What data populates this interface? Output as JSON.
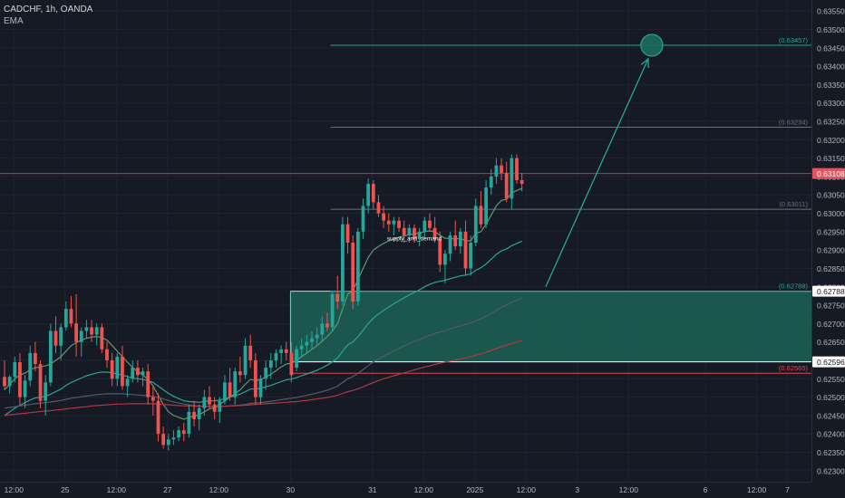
{
  "legend": {
    "symbol_line": "CADCHF, 1h, OANDA",
    "indicator": "EMA"
  },
  "chart_data": {
    "type": "candlestick",
    "symbol": "CADCHF",
    "interval": "1h",
    "source": "OANDA",
    "ylim": [
      0.6227,
      0.6358
    ],
    "y_ticks": [
      "0.63550",
      "0.63500",
      "0.63450",
      "0.63400",
      "0.63350",
      "0.63300",
      "0.63250",
      "0.63200",
      "0.63150",
      "0.63100",
      "0.63050",
      "0.63000",
      "0.62950",
      "0.62900",
      "0.62850",
      "0.62800",
      "0.62750",
      "0.62700",
      "0.62650",
      "0.62600",
      "0.62550",
      "0.62500",
      "0.62450",
      "0.62400",
      "0.62350",
      "0.62300"
    ],
    "x_ticks": [
      {
        "label": "12:00",
        "bar": 2
      },
      {
        "label": "25",
        "bar": 12
      },
      {
        "label": "12:00",
        "bar": 22
      },
      {
        "label": "27",
        "bar": 32
      },
      {
        "label": "12:00",
        "bar": 42
      },
      {
        "label": "30",
        "bar": 56
      },
      {
        "label": "31",
        "bar": 72
      },
      {
        "label": "12:00",
        "bar": 82
      },
      {
        "label": "2025",
        "bar": 92
      },
      {
        "label": "12:00",
        "bar": 102
      },
      {
        "label": "3",
        "bar": 112
      },
      {
        "label": "12:00",
        "bar": 122
      },
      {
        "label": "6",
        "bar": 137
      },
      {
        "label": "12:00",
        "bar": 147
      },
      {
        "label": "7",
        "bar": 153
      }
    ],
    "candles": [
      [
        0.62555,
        0.626,
        0.6252,
        0.6253
      ],
      [
        0.6253,
        0.6256,
        0.6251,
        0.62555
      ],
      [
        0.62555,
        0.6261,
        0.6254,
        0.62595
      ],
      [
        0.62595,
        0.6262,
        0.6248,
        0.625
      ],
      [
        0.625,
        0.6256,
        0.6247,
        0.62545
      ],
      [
        0.62545,
        0.6264,
        0.6253,
        0.6262
      ],
      [
        0.6262,
        0.6265,
        0.6257,
        0.6259
      ],
      [
        0.6259,
        0.626,
        0.6247,
        0.6249
      ],
      [
        0.6249,
        0.6256,
        0.6245,
        0.6254
      ],
      [
        0.6254,
        0.627,
        0.6253,
        0.6268
      ],
      [
        0.6268,
        0.6272,
        0.6262,
        0.6264
      ],
      [
        0.6264,
        0.627,
        0.626,
        0.6269
      ],
      [
        0.6269,
        0.6276,
        0.6268,
        0.6274
      ],
      [
        0.6274,
        0.62775,
        0.6269,
        0.627
      ],
      [
        0.627,
        0.6278,
        0.6261,
        0.6265
      ],
      [
        0.6265,
        0.6269,
        0.6261,
        0.6268
      ],
      [
        0.6268,
        0.6271,
        0.6266,
        0.6269
      ],
      [
        0.6269,
        0.6271,
        0.6265,
        0.6267
      ],
      [
        0.6267,
        0.627,
        0.6264,
        0.6269
      ],
      [
        0.6269,
        0.627,
        0.6262,
        0.6263
      ],
      [
        0.6263,
        0.6265,
        0.6258,
        0.626
      ],
      [
        0.626,
        0.6262,
        0.6253,
        0.6255
      ],
      [
        0.6255,
        0.6262,
        0.6253,
        0.6261
      ],
      [
        0.6261,
        0.6264,
        0.6252,
        0.6253
      ],
      [
        0.6253,
        0.6256,
        0.625,
        0.6255
      ],
      [
        0.6255,
        0.626,
        0.6254,
        0.6258
      ],
      [
        0.6258,
        0.626,
        0.6254,
        0.6256
      ],
      [
        0.6256,
        0.6258,
        0.6253,
        0.6257
      ],
      [
        0.6257,
        0.6259,
        0.6248,
        0.625
      ],
      [
        0.625,
        0.6253,
        0.6245,
        0.6249
      ],
      [
        0.6249,
        0.6251,
        0.6238,
        0.624
      ],
      [
        0.624,
        0.6242,
        0.6236,
        0.6237
      ],
      [
        0.6237,
        0.624,
        0.62355,
        0.62385
      ],
      [
        0.62385,
        0.6241,
        0.6237,
        0.6239
      ],
      [
        0.6239,
        0.6242,
        0.6238,
        0.6241
      ],
      [
        0.6241,
        0.6243,
        0.6238,
        0.624
      ],
      [
        0.624,
        0.6248,
        0.6239,
        0.6246
      ],
      [
        0.6246,
        0.6249,
        0.6242,
        0.6244
      ],
      [
        0.6244,
        0.6248,
        0.6241,
        0.6247
      ],
      [
        0.6247,
        0.6252,
        0.6245,
        0.625
      ],
      [
        0.625,
        0.6253,
        0.6247,
        0.6248
      ],
      [
        0.6248,
        0.625,
        0.6244,
        0.6246
      ],
      [
        0.6246,
        0.625,
        0.6243,
        0.6249
      ],
      [
        0.6249,
        0.6256,
        0.6248,
        0.6254
      ],
      [
        0.6254,
        0.6258,
        0.6249,
        0.625
      ],
      [
        0.625,
        0.6258,
        0.6248,
        0.6257
      ],
      [
        0.6257,
        0.6261,
        0.6254,
        0.6256
      ],
      [
        0.6256,
        0.6266,
        0.6255,
        0.6264
      ],
      [
        0.6264,
        0.6267,
        0.6258,
        0.626
      ],
      [
        0.626,
        0.6262,
        0.6248,
        0.625
      ],
      [
        0.625,
        0.6256,
        0.6248,
        0.6255
      ],
      [
        0.6255,
        0.626,
        0.6252,
        0.6258
      ],
      [
        0.6258,
        0.6262,
        0.6255,
        0.626
      ],
      [
        0.626,
        0.6263,
        0.6258,
        0.6262
      ],
      [
        0.6262,
        0.6264,
        0.6259,
        0.6263
      ],
      [
        0.6263,
        0.6265,
        0.626,
        0.6262
      ],
      [
        0.6262,
        0.6265,
        0.6254,
        0.6256
      ],
      [
        0.6258,
        0.6264,
        0.6257,
        0.6263
      ],
      [
        0.6263,
        0.6266,
        0.6261,
        0.6264
      ],
      [
        0.6264,
        0.6267,
        0.6262,
        0.6265
      ],
      [
        0.6265,
        0.6268,
        0.6263,
        0.6266
      ],
      [
        0.6266,
        0.6269,
        0.6264,
        0.6267
      ],
      [
        0.6267,
        0.6272,
        0.6265,
        0.627
      ],
      [
        0.627,
        0.6273,
        0.6268,
        0.6269
      ],
      [
        0.6269,
        0.6279,
        0.6268,
        0.6278
      ],
      [
        0.6278,
        0.6283,
        0.6274,
        0.6276
      ],
      [
        0.6276,
        0.6299,
        0.6275,
        0.6297
      ],
      [
        0.6297,
        0.6299,
        0.6289,
        0.6292
      ],
      [
        0.6292,
        0.6294,
        0.6274,
        0.6276
      ],
      [
        0.6276,
        0.6296,
        0.6275,
        0.6295
      ],
      [
        0.6295,
        0.6304,
        0.6293,
        0.6302
      ],
      [
        0.6302,
        0.63095,
        0.63,
        0.6308
      ],
      [
        0.6308,
        0.6309,
        0.6301,
        0.6303
      ],
      [
        0.6303,
        0.6305,
        0.6299,
        0.63
      ],
      [
        0.63,
        0.6302,
        0.6296,
        0.6298
      ],
      [
        0.6298,
        0.63,
        0.6295,
        0.6297
      ],
      [
        0.6297,
        0.6299,
        0.6294,
        0.6298
      ],
      [
        0.6298,
        0.6299,
        0.6295,
        0.6296
      ],
      [
        0.6296,
        0.6298,
        0.6292,
        0.6294
      ],
      [
        0.6294,
        0.6297,
        0.6292,
        0.6296
      ],
      [
        0.6296,
        0.6297,
        0.6292,
        0.6293
      ],
      [
        0.6293,
        0.6296,
        0.6291,
        0.6295
      ],
      [
        0.6295,
        0.6299,
        0.6293,
        0.6298
      ],
      [
        0.6298,
        0.63,
        0.6295,
        0.6296
      ],
      [
        0.6296,
        0.6299,
        0.6292,
        0.6293
      ],
      [
        0.6293,
        0.6295,
        0.6284,
        0.6286
      ],
      [
        0.6286,
        0.629,
        0.6281,
        0.6289
      ],
      [
        0.6289,
        0.6295,
        0.6287,
        0.6294
      ],
      [
        0.6294,
        0.6298,
        0.629,
        0.6291
      ],
      [
        0.6291,
        0.6296,
        0.6289,
        0.6295
      ],
      [
        0.6295,
        0.6298,
        0.6283,
        0.6285
      ],
      [
        0.6285,
        0.6294,
        0.6283,
        0.6292
      ],
      [
        0.6292,
        0.6304,
        0.6291,
        0.6302
      ],
      [
        0.6302,
        0.6306,
        0.6296,
        0.6297
      ],
      [
        0.6297,
        0.6309,
        0.6296,
        0.6307
      ],
      [
        0.6307,
        0.6312,
        0.6305,
        0.631
      ],
      [
        0.631,
        0.6315,
        0.6308,
        0.6313
      ],
      [
        0.6313,
        0.6315,
        0.6309,
        0.6311
      ],
      [
        0.6311,
        0.6314,
        0.6303,
        0.6304
      ],
      [
        0.6304,
        0.6316,
        0.6301,
        0.6315
      ],
      [
        0.6315,
        0.6316,
        0.6308,
        0.6309
      ],
      [
        0.6309,
        0.6311,
        0.6306,
        0.6308
      ]
    ],
    "ema_series": [
      {
        "color": "#5d9b6a",
        "from_bar": 0,
        "values": [
          0.6252,
          0.62535,
          0.6255,
          0.6256,
          0.62565,
          0.62575,
          0.6258,
          0.62582,
          0.62585,
          0.6259,
          0.626,
          0.6261,
          0.62625,
          0.6264,
          0.62648,
          0.62655,
          0.6266,
          0.62663,
          0.62665,
          0.62662,
          0.62655,
          0.6264,
          0.62625,
          0.6261,
          0.62595,
          0.6258,
          0.6257,
          0.6256,
          0.62548,
          0.6253,
          0.62505,
          0.6248,
          0.6246,
          0.6245,
          0.62445,
          0.6244,
          0.62445,
          0.62448,
          0.62452,
          0.6246,
          0.62468,
          0.62472,
          0.6248,
          0.6249,
          0.625,
          0.6251,
          0.6252,
          0.62535,
          0.62548,
          0.62545,
          0.62548,
          0.62555,
          0.62562,
          0.62572,
          0.62582,
          0.6259,
          0.62592,
          0.626,
          0.6261,
          0.6262,
          0.6263,
          0.6264,
          0.62652,
          0.62665,
          0.6268,
          0.627,
          0.6274,
          0.6278,
          0.6279,
          0.6282,
          0.6285,
          0.6288,
          0.629,
          0.6291,
          0.62918,
          0.62925,
          0.6293,
          0.62935,
          0.62938,
          0.62942,
          0.62944,
          0.62946,
          0.6295,
          0.62952,
          0.6295,
          0.6294,
          0.62932,
          0.62932,
          0.6293,
          0.62932,
          0.62925,
          0.62925,
          0.62945,
          0.6295,
          0.6297,
          0.62995,
          0.6302,
          0.63035,
          0.63038,
          0.63055,
          0.63062,
          0.63068
        ]
      },
      {
        "color": "#26a69a",
        "from_bar": 0,
        "values": [
          0.6245,
          0.6246,
          0.6247,
          0.62478,
          0.62485,
          0.62492,
          0.62498,
          0.625,
          0.62502,
          0.62508,
          0.62515,
          0.62522,
          0.62532,
          0.6254,
          0.62546,
          0.62552,
          0.62558,
          0.62562,
          0.62566,
          0.62568,
          0.62568,
          0.62566,
          0.62563,
          0.6256,
          0.62556,
          0.62552,
          0.6255,
          0.62548,
          0.62545,
          0.6254,
          0.6253,
          0.6252,
          0.6251,
          0.62502,
          0.62496,
          0.6249,
          0.62488,
          0.62487,
          0.62486,
          0.62488,
          0.6249,
          0.6249,
          0.62492,
          0.62496,
          0.625,
          0.62504,
          0.62508,
          0.62515,
          0.62522,
          0.62522,
          0.62524,
          0.62528,
          0.62532,
          0.62537,
          0.62542,
          0.62547,
          0.62549,
          0.62553,
          0.62558,
          0.62563,
          0.62568,
          0.62573,
          0.6258,
          0.62587,
          0.62596,
          0.62606,
          0.62625,
          0.62642,
          0.6265,
          0.62665,
          0.62682,
          0.627,
          0.62715,
          0.62726,
          0.62736,
          0.62745,
          0.62754,
          0.62762,
          0.6277,
          0.62778,
          0.62785,
          0.62792,
          0.628,
          0.62807,
          0.62812,
          0.62815,
          0.62818,
          0.62822,
          0.62826,
          0.6283,
          0.62832,
          0.62835,
          0.62845,
          0.62852,
          0.62862,
          0.62875,
          0.62888,
          0.62898,
          0.62903,
          0.62912,
          0.62918,
          0.62924
        ]
      },
      {
        "color": "#555b68",
        "from_bar": 0,
        "values": [
          0.6247,
          0.62472,
          0.62474,
          0.62476,
          0.62478,
          0.6248,
          0.62482,
          0.62484,
          0.62485,
          0.62487,
          0.62489,
          0.62491,
          0.62494,
          0.62497,
          0.62499,
          0.62501,
          0.62503,
          0.62505,
          0.62507,
          0.62508,
          0.62509,
          0.62509,
          0.62509,
          0.62509,
          0.62508,
          0.62507,
          0.62506,
          0.62505,
          0.62504,
          0.62502,
          0.62499,
          0.62495,
          0.62491,
          0.62487,
          0.62484,
          0.62481,
          0.62479,
          0.62477,
          0.62476,
          0.62475,
          0.62475,
          0.62474,
          0.62474,
          0.62475,
          0.62476,
          0.62477,
          0.62478,
          0.6248,
          0.62483,
          0.62484,
          0.62485,
          0.62487,
          0.62489,
          0.62491,
          0.62493,
          0.62495,
          0.62497,
          0.62499,
          0.62502,
          0.62505,
          0.62508,
          0.62511,
          0.62515,
          0.62519,
          0.62524,
          0.6253,
          0.6254,
          0.6255,
          0.62556,
          0.62565,
          0.62575,
          0.62586,
          0.62596,
          0.62604,
          0.62612,
          0.62619,
          0.62626,
          0.62633,
          0.62639,
          0.62645,
          0.62651,
          0.62657,
          0.62663,
          0.62668,
          0.62673,
          0.62677,
          0.62681,
          0.62686,
          0.6269,
          0.62694,
          0.62698,
          0.62702,
          0.62708,
          0.62713,
          0.6272,
          0.62728,
          0.62736,
          0.62744,
          0.6275,
          0.62758,
          0.62764,
          0.6277
        ]
      },
      {
        "color": "#b2373e",
        "from_bar": 0,
        "values": [
          0.6245,
          0.62452,
          0.62453,
          0.62455,
          0.62456,
          0.62458,
          0.62459,
          0.62461,
          0.62462,
          0.62463,
          0.62465,
          0.62466,
          0.62468,
          0.6247,
          0.62471,
          0.62473,
          0.62474,
          0.62476,
          0.62477,
          0.62478,
          0.62479,
          0.6248,
          0.62481,
          0.62481,
          0.62482,
          0.62482,
          0.62482,
          0.62482,
          0.62482,
          0.62482,
          0.62481,
          0.6248,
          0.62479,
          0.62478,
          0.62477,
          0.62476,
          0.62476,
          0.62475,
          0.62475,
          0.62475,
          0.62475,
          0.62475,
          0.62475,
          0.62475,
          0.62476,
          0.62476,
          0.62477,
          0.62478,
          0.62479,
          0.6248,
          0.62481,
          0.62482,
          0.62483,
          0.62484,
          0.62485,
          0.62486,
          0.62487,
          0.62488,
          0.6249,
          0.62491,
          0.62493,
          0.62495,
          0.62497,
          0.62499,
          0.62502,
          0.62505,
          0.6251,
          0.62515,
          0.62518,
          0.62523,
          0.62528,
          0.62534,
          0.6254,
          0.62545,
          0.6255,
          0.62554,
          0.62558,
          0.62562,
          0.62566,
          0.6257,
          0.62574,
          0.62578,
          0.62582,
          0.62585,
          0.62589,
          0.62592,
          0.62595,
          0.62598,
          0.62601,
          0.62604,
          0.62607,
          0.6261,
          0.62614,
          0.62618,
          0.62622,
          0.62627,
          0.62632,
          0.62637,
          0.62641,
          0.62646,
          0.6265,
          0.62654
        ]
      }
    ],
    "zone": {
      "top": 0.62788,
      "bottom": 0.62596,
      "from_bar": 56,
      "color": "#1d6b5e"
    },
    "levels": [
      {
        "price": 0.63457,
        "label": "(0.63457)",
        "color": "#26a69a",
        "from_bar": 64
      },
      {
        "price": 0.63234,
        "label": "(0.63234)",
        "color": "#6b6f7a",
        "from_bar": 64
      },
      {
        "price": 0.63011,
        "label": "(0.63011)",
        "color": "#6b6f7a",
        "from_bar": 64
      },
      {
        "price": 0.62788,
        "label": "(0.62788)",
        "color": "#26a69a",
        "from_bar": 64
      },
      {
        "price": 0.62565,
        "label": "(0.62565)",
        "color": "#d9484f",
        "from_bar": 56
      }
    ],
    "current_price": {
      "value": 0.63108,
      "label": "0.63108",
      "color": "#e05562"
    },
    "axis_price_labels": [
      {
        "value": 0.62788,
        "label": "0.62788",
        "bg": "#ffffff",
        "fg": "#131722"
      },
      {
        "value": 0.62596,
        "label": "0.62596",
        "bg": "#ffffff",
        "fg": "#131722"
      }
    ],
    "zone_label": "supply_and_demand",
    "arrow": {
      "from_bar": 106,
      "from_price": 0.628,
      "to_bar": 126,
      "to_price": 0.6342
    },
    "target_circle": {
      "bar": 126,
      "price": 0.63457
    },
    "colors": {
      "up": "#26a69a",
      "down": "#ef5350",
      "background": "#161a25",
      "grid": "#1f2330",
      "axis_text": "#b2b5be"
    }
  }
}
